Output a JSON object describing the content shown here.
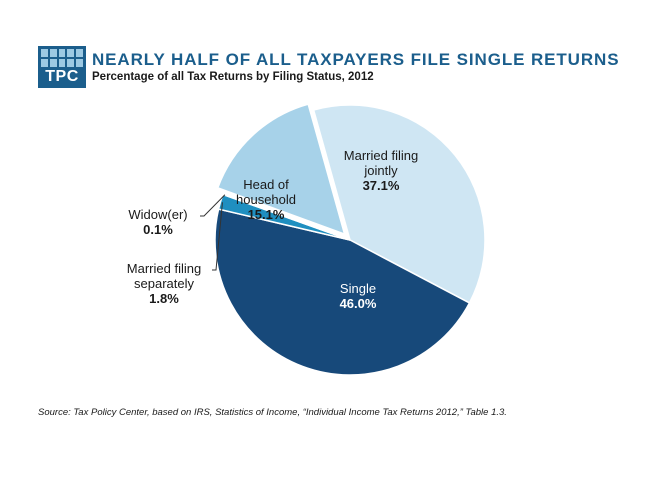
{
  "header": {
    "logo_text": "TPC",
    "title": "NEARLY HALF OF ALL TAXPAYERS FILE SINGLE RETURNS",
    "subtitle": "Percentage of all Tax Returns by Filing Status, 2012"
  },
  "chart_data": {
    "type": "pie",
    "title": "NEARLY HALF OF ALL TAXPAYERS FILE SINGLE RETURNS",
    "subtitle": "Percentage of all Tax Returns by Filing Status, 2012",
    "slices": [
      {
        "key": "married_jointly",
        "label_lines": [
          "Married filing",
          "jointly"
        ],
        "value": 37.1,
        "value_label": "37.1%",
        "color": "#cfe6f3"
      },
      {
        "key": "single",
        "label_lines": [
          "Single"
        ],
        "value": 46.0,
        "value_label": "46.0%",
        "color": "#17497a"
      },
      {
        "key": "married_separately",
        "label_lines": [
          "Married filing",
          "separately"
        ],
        "value": 1.8,
        "value_label": "1.8%",
        "color": "#1f8fc0"
      },
      {
        "key": "widower",
        "label_lines": [
          "Widow(er)"
        ],
        "value": 0.1,
        "value_label": "0.1%",
        "color": "#d9d9d9"
      },
      {
        "key": "head_of_household",
        "label_lines": [
          "Head of",
          "household"
        ],
        "value": 15.1,
        "value_label": "15.1%",
        "color": "#a7d2e9"
      }
    ],
    "explode": [
      "head_of_household"
    ]
  },
  "source": "Source: Tax Policy Center,  based on IRS, Statistics  of Income, “Individual Income Tax Returns 2012,” Table 1.3."
}
